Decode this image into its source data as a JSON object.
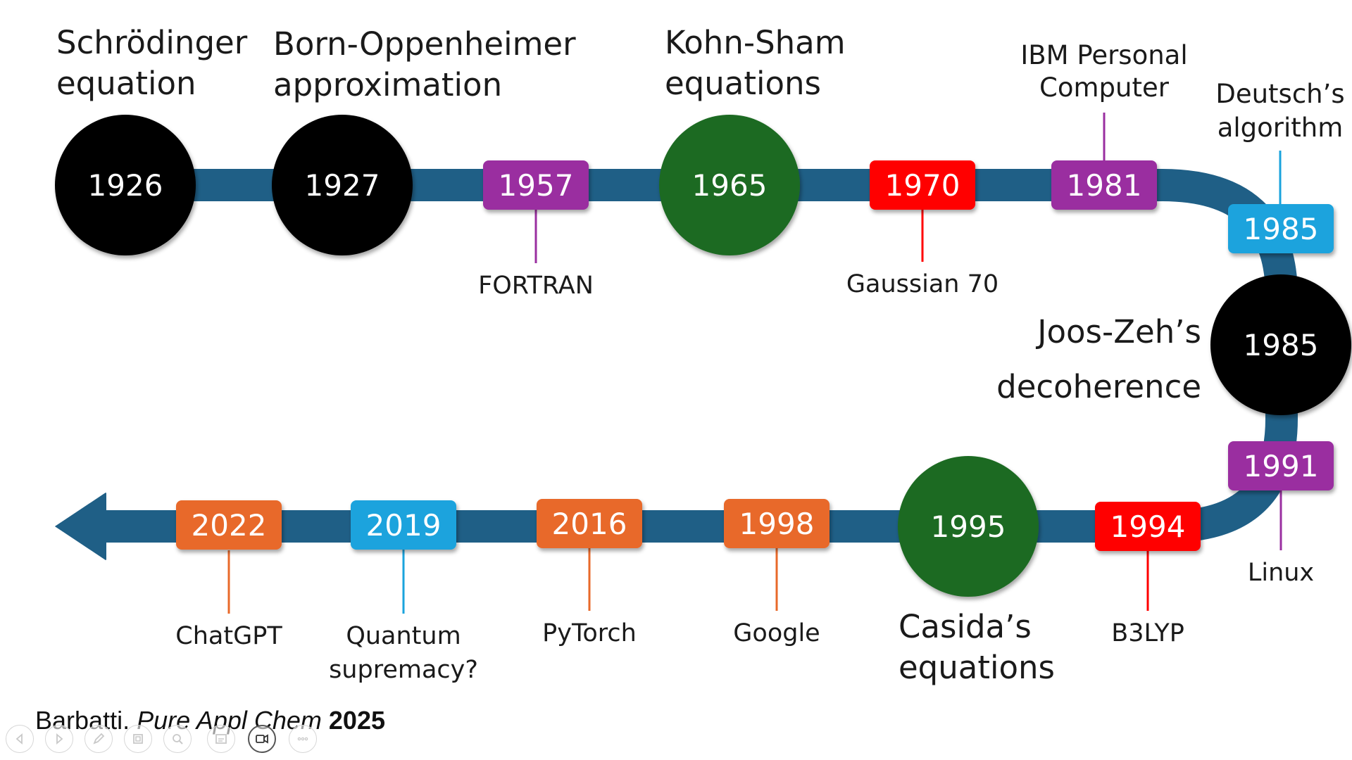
{
  "colors": {
    "track": "#1f5f86",
    "black": "#050505",
    "green": "#1e6b23",
    "purple": "#9a2fa0",
    "red": "#ff0000",
    "blue": "#1aa3dd",
    "orange": "#e8692a",
    "label_text": "#1a1a1a"
  },
  "events": [
    {
      "id": "e1926",
      "year": "1926",
      "shape": "circle",
      "color": "black"
    },
    {
      "id": "e1927",
      "year": "1927",
      "shape": "circle",
      "color": "black"
    },
    {
      "id": "e1957",
      "year": "1957",
      "shape": "box",
      "color": "purple"
    },
    {
      "id": "e1965",
      "year": "1965",
      "shape": "circle",
      "color": "green"
    },
    {
      "id": "e1970",
      "year": "1970",
      "shape": "box",
      "color": "red"
    },
    {
      "id": "e1981",
      "year": "1981",
      "shape": "box",
      "color": "purple"
    },
    {
      "id": "e1985a",
      "year": "1985",
      "shape": "box",
      "color": "blue"
    },
    {
      "id": "e1985b",
      "year": "1985",
      "shape": "circle",
      "color": "black"
    },
    {
      "id": "e1991",
      "year": "1991",
      "shape": "box",
      "color": "purple"
    },
    {
      "id": "e1994",
      "year": "1994",
      "shape": "box",
      "color": "red"
    },
    {
      "id": "e1995",
      "year": "1995",
      "shape": "circle",
      "color": "green"
    },
    {
      "id": "e1998",
      "year": "1998",
      "shape": "box",
      "color": "orange"
    },
    {
      "id": "e2016",
      "year": "2016",
      "shape": "box",
      "color": "orange"
    },
    {
      "id": "e2019",
      "year": "2019",
      "shape": "box",
      "color": "blue"
    },
    {
      "id": "e2022",
      "year": "2022",
      "shape": "box",
      "color": "orange"
    }
  ],
  "labels": {
    "schrodinger": [
      "Schrödinger",
      "equation"
    ],
    "born_oppenheimer": [
      "Born-Oppenheimer",
      "approximation"
    ],
    "fortran": [
      "FORTRAN"
    ],
    "kohn_sham": [
      "Kohn-Sham",
      "equations"
    ],
    "gaussian70": [
      "Gaussian 70"
    ],
    "ibm_pc": [
      "IBM Personal",
      "Computer"
    ],
    "deutsch": [
      "Deutsch’s",
      "algorithm"
    ],
    "joos_zeh": [
      "Joos-Zeh’s",
      "decoherence"
    ],
    "linux": [
      "Linux"
    ],
    "b3lyp": [
      "B3LYP"
    ],
    "casida": [
      "Casida’s",
      "equations"
    ],
    "google": [
      "Google"
    ],
    "pytorch": [
      "PyTorch"
    ],
    "quantum_supremacy": [
      "Quantum",
      "supremacy?"
    ],
    "chatgpt": [
      "ChatGPT"
    ]
  },
  "citation": {
    "author": "Barbatti.",
    "journal": "Pure Appl Chem",
    "year": "2025"
  },
  "toolbar": {
    "buttons": [
      {
        "name": "previous-slide-icon"
      },
      {
        "name": "next-slide-icon"
      },
      {
        "name": "pen-icon"
      },
      {
        "name": "slides-grid-icon"
      },
      {
        "name": "zoom-icon"
      },
      {
        "name": "subtitles-icon"
      },
      {
        "name": "video-camera-icon"
      },
      {
        "name": "more-options-icon"
      }
    ]
  }
}
